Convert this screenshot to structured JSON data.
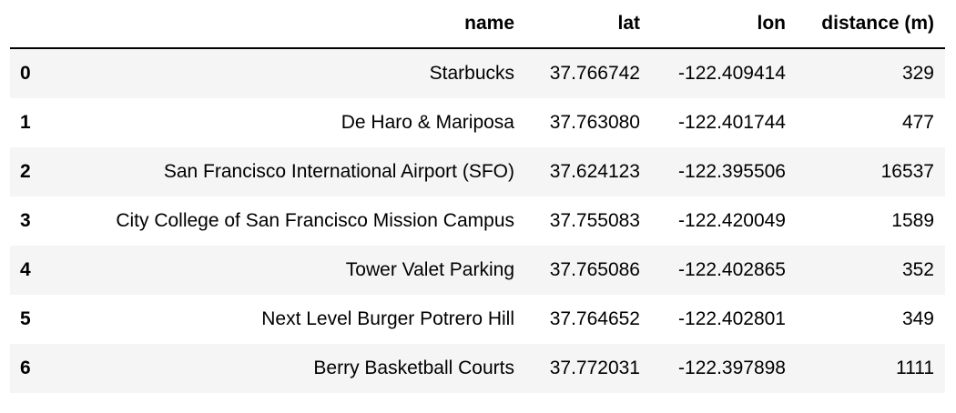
{
  "table": {
    "columns": [
      "",
      "name",
      "lat",
      "lon",
      "distance (m)"
    ],
    "rows": [
      {
        "index": "0",
        "name": "Starbucks",
        "lat": "37.766742",
        "lon": "-122.409414",
        "distance": "329"
      },
      {
        "index": "1",
        "name": "De Haro & Mariposa",
        "lat": "37.763080",
        "lon": "-122.401744",
        "distance": "477"
      },
      {
        "index": "2",
        "name": "San Francisco International Airport (SFO)",
        "lat": "37.624123",
        "lon": "-122.395506",
        "distance": "16537"
      },
      {
        "index": "3",
        "name": "City College of San Francisco Mission Campus",
        "lat": "37.755083",
        "lon": "-122.420049",
        "distance": "1589"
      },
      {
        "index": "4",
        "name": "Tower Valet Parking",
        "lat": "37.765086",
        "lon": "-122.402865",
        "distance": "352"
      },
      {
        "index": "5",
        "name": "Next Level Burger Potrero Hill",
        "lat": "37.764652",
        "lon": "-122.402801",
        "distance": "349"
      },
      {
        "index": "6",
        "name": "Berry Basketball Courts",
        "lat": "37.772031",
        "lon": "-122.397898",
        "distance": "1111"
      }
    ]
  }
}
